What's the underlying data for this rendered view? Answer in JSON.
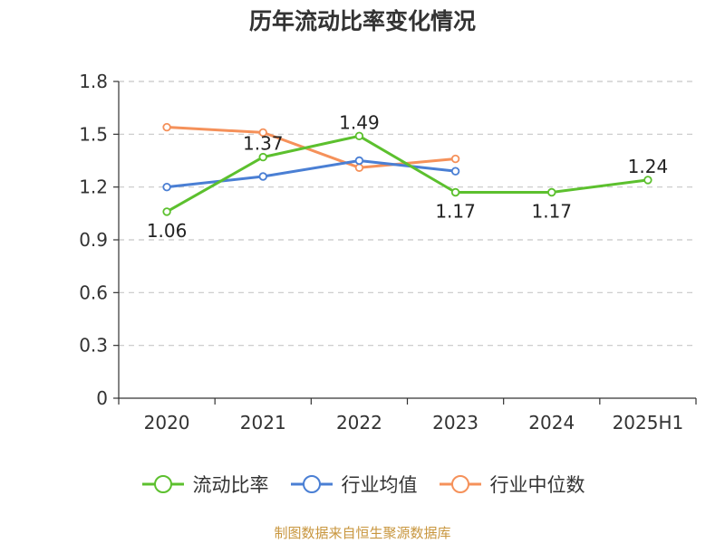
{
  "chart_data": {
    "type": "line",
    "title": "历年流动比率变化情况",
    "categories": [
      "2020",
      "2021",
      "2022",
      "2023",
      "2024",
      "2025H1"
    ],
    "ylim": [
      0,
      1.8
    ],
    "yticks": [
      "0",
      "0.3",
      "0.6",
      "0.9",
      "1.2",
      "1.5",
      "1.8"
    ],
    "grid": "horizontal-dashed",
    "legend_position": "bottom",
    "series": [
      {
        "name": "流动比率",
        "color": "#5cc02e",
        "values": [
          1.06,
          1.37,
          1.49,
          1.17,
          1.17,
          1.24
        ],
        "labels": [
          "1.06",
          "1.37",
          "1.49",
          "1.17",
          "1.17",
          "1.24"
        ]
      },
      {
        "name": "行业均值",
        "color": "#4a7fd4",
        "values": [
          1.2,
          1.26,
          1.35,
          1.29,
          null,
          null
        ]
      },
      {
        "name": "行业中位数",
        "color": "#f5915a",
        "values": [
          1.54,
          1.51,
          1.31,
          1.36,
          null,
          null
        ]
      }
    ]
  },
  "source": "制图数据来自恒生聚源数据库"
}
